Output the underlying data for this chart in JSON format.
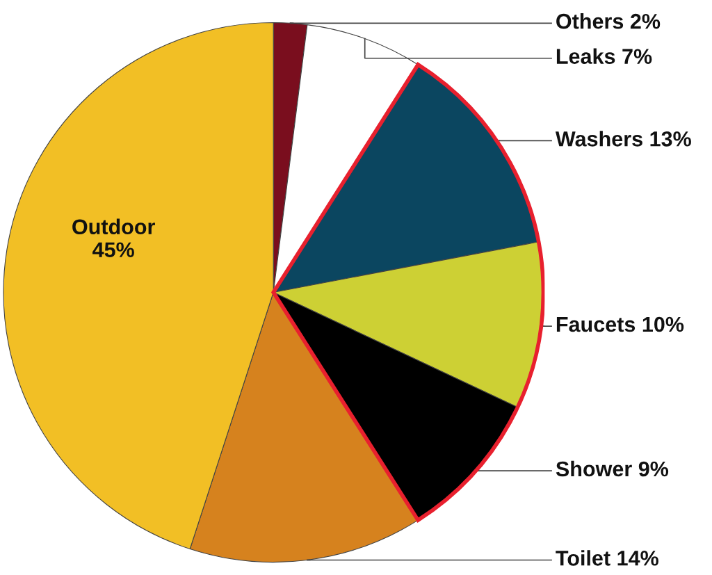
{
  "chart_data": {
    "type": "pie",
    "categories": [
      "Others",
      "Leaks",
      "Washers",
      "Faucets",
      "Shower",
      "Toilet",
      "Outdoor"
    ],
    "values": [
      2,
      7,
      13,
      10,
      9,
      14,
      45
    ],
    "value_labels": [
      "2%",
      "7%",
      "13%",
      "10%",
      "9%",
      "14%",
      "45%"
    ],
    "colors": [
      "#7a0e1e",
      "#ffffff",
      "#0b4660",
      "#cdd034",
      "#000000",
      "#d6821e",
      "#f2bf25"
    ]
  }
}
